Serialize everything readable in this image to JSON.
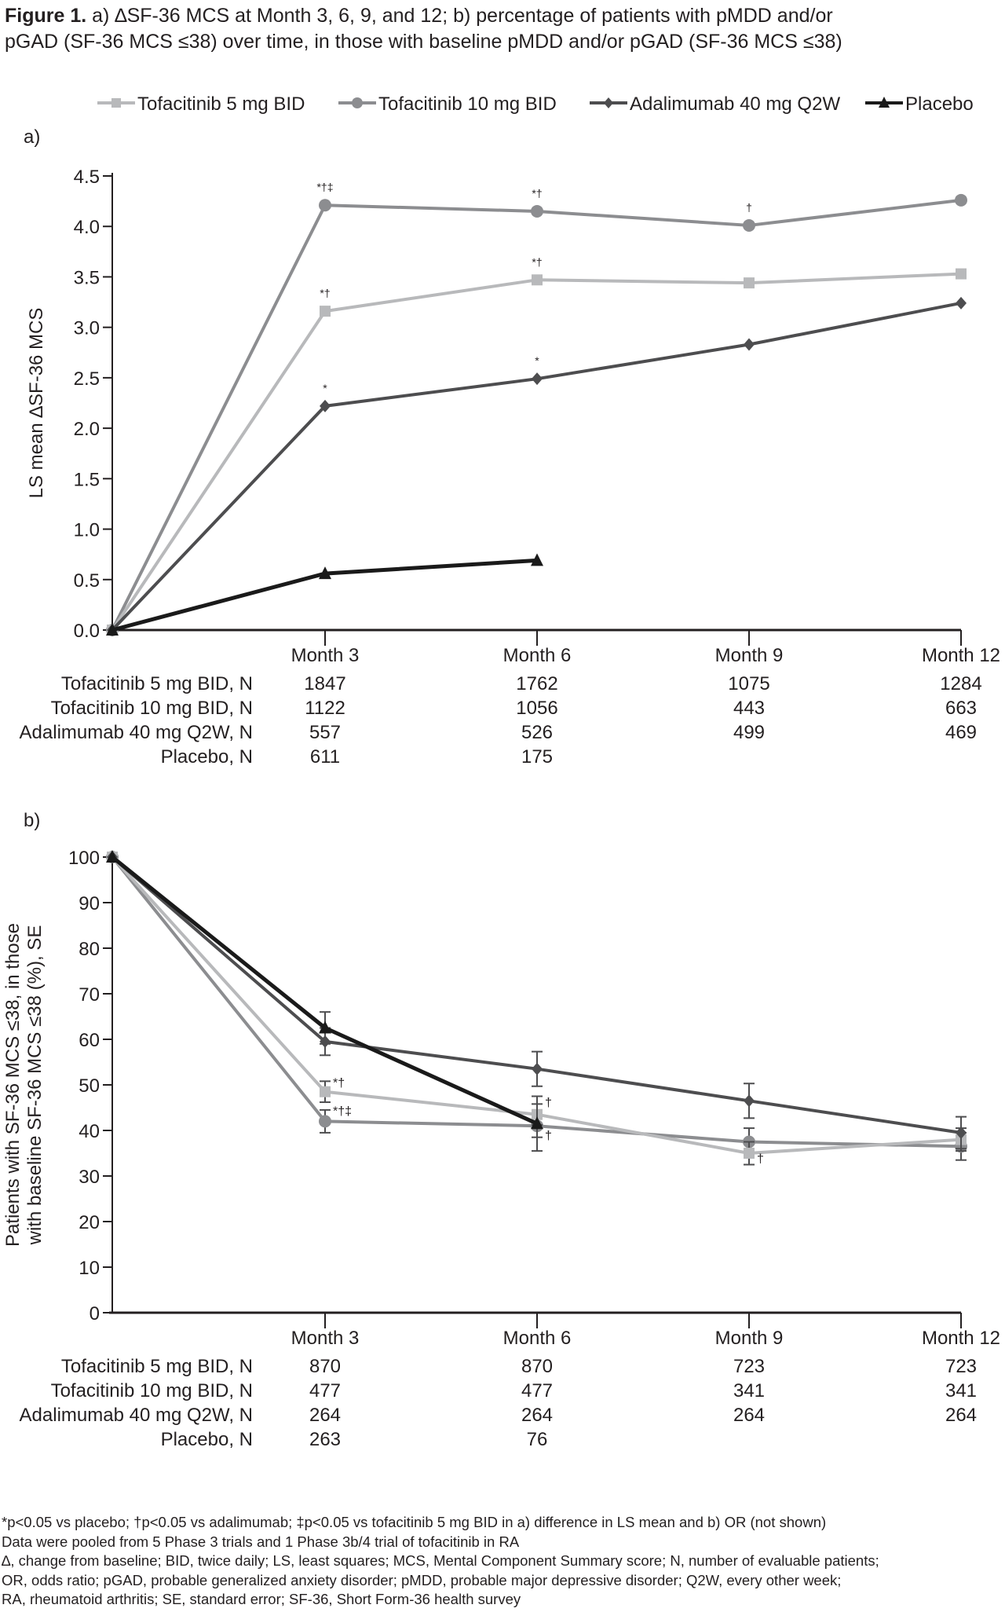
{
  "figure": {
    "title_bold": "Figure 1.",
    "title_rest_line1": " a) ∆SF-36 MCS at Month 3, 6, 9, and 12; b) percentage of patients with pMDD and/or",
    "title_line2": "pGAD (SF-36 MCS ≤38) over time, in those with baseline pMDD and/or pGAD (SF-36 MCS ≤38)"
  },
  "legend": [
    {
      "label": "Tofacitinib 5 mg BID",
      "color": "#b8b9bb",
      "marker": "square"
    },
    {
      "label": "Tofacitinib 10 mg BID",
      "color": "#8c8d90",
      "marker": "circle"
    },
    {
      "label": "Adalimumab 40 mg Q2W",
      "color": "#4d4d4f",
      "marker": "diamond"
    },
    {
      "label": "Placebo",
      "color": "#1a1a1a",
      "marker": "triangle"
    }
  ],
  "chart_data": [
    {
      "type": "line",
      "panel_label": "a)",
      "ylabel": "LS mean ∆SF-36 MCS",
      "xlabel": "",
      "x": [
        "Baseline",
        "Month 3",
        "Month 6",
        "Month 9",
        "Month 12"
      ],
      "x_tick_labels": [
        "",
        "Month 3",
        "Month 6",
        "Month 9",
        "Month 12"
      ],
      "ylim": [
        0,
        4.5
      ],
      "yticks": [
        "0.0",
        "0.5",
        "1.0",
        "1.5",
        "2.0",
        "2.5",
        "3.0",
        "3.5",
        "4.0",
        "4.5"
      ],
      "grid": false,
      "legend_position": "top",
      "series": [
        {
          "name": "Tofacitinib 5 mg BID",
          "values": [
            0,
            3.16,
            3.47,
            3.44,
            3.53
          ],
          "significance": [
            "",
            "*†",
            "*†",
            "",
            ""
          ]
        },
        {
          "name": "Tofacitinib 10 mg BID",
          "values": [
            0,
            4.21,
            4.15,
            4.01,
            4.26
          ],
          "significance": [
            "",
            "*†‡",
            "*†",
            "†",
            ""
          ]
        },
        {
          "name": "Adalimumab 40 mg Q2W",
          "values": [
            0,
            2.22,
            2.49,
            2.83,
            3.24
          ],
          "significance": [
            "",
            "*",
            "*",
            "",
            ""
          ]
        },
        {
          "name": "Placebo",
          "values": [
            0,
            0.56,
            0.69,
            null,
            null
          ],
          "significance": [
            "",
            "",
            "",
            "",
            ""
          ]
        }
      ],
      "n_table": {
        "rows": [
          {
            "label": "Tofacitinib 5 mg BID, N",
            "values": [
              "1847",
              "1762",
              "1075",
              "1284"
            ]
          },
          {
            "label": "Tofacitinib 10 mg BID, N",
            "values": [
              "1122",
              "1056",
              "443",
              "663"
            ]
          },
          {
            "label": "Adalimumab 40 mg Q2W, N",
            "values": [
              "557",
              "526",
              "499",
              "469"
            ]
          },
          {
            "label": "Placebo, N",
            "values": [
              "611",
              "175",
              "",
              ""
            ]
          }
        ]
      }
    },
    {
      "type": "line",
      "panel_label": "b)",
      "ylabel_line1": "Patients with SF-36 MCS ≤38, in those",
      "ylabel_line2": "with baseline SF-36 MCS ≤38 (%), SE",
      "xlabel": "",
      "x": [
        "Baseline",
        "Month 3",
        "Month 6",
        "Month 9",
        "Month 12"
      ],
      "x_tick_labels": [
        "",
        "Month 3",
        "Month 6",
        "Month 9",
        "Month 12"
      ],
      "ylim": [
        0,
        100
      ],
      "yticks": [
        "0",
        "10",
        "20",
        "30",
        "40",
        "50",
        "60",
        "70",
        "80",
        "90",
        "100"
      ],
      "grid": false,
      "series": [
        {
          "name": "Tofacitinib 5 mg BID",
          "values": [
            100,
            48.5,
            43.5,
            35,
            38
          ],
          "se": [
            0,
            2.3,
            2.3,
            2.5,
            2.5
          ],
          "significance": [
            "",
            "*†",
            "†",
            "†",
            ""
          ]
        },
        {
          "name": "Tofacitinib 10 mg BID",
          "values": [
            100,
            42,
            41,
            37.5,
            36.5
          ],
          "se": [
            0,
            2.5,
            2.5,
            3,
            3
          ],
          "significance": [
            "",
            "*†‡",
            "",
            "",
            ""
          ]
        },
        {
          "name": "Adalimumab 40 mg Q2W",
          "values": [
            100,
            59.5,
            53.5,
            46.5,
            39.5
          ],
          "se": [
            0,
            3,
            3.8,
            3.8,
            3.5
          ],
          "significance": [
            "",
            "",
            "",
            "",
            ""
          ]
        },
        {
          "name": "Placebo",
          "values": [
            100,
            62.5,
            41.5,
            null,
            null
          ],
          "se": [
            0,
            3.5,
            6,
            null,
            null
          ],
          "significance": [
            "",
            "",
            "†",
            "",
            ""
          ]
        }
      ],
      "n_table": {
        "rows": [
          {
            "label": "Tofacitinib 5 mg BID, N",
            "values": [
              "870",
              "870",
              "723",
              "723"
            ]
          },
          {
            "label": "Tofacitinib 10 mg BID, N",
            "values": [
              "477",
              "477",
              "341",
              "341"
            ]
          },
          {
            "label": "Adalimumab 40 mg Q2W, N",
            "values": [
              "264",
              "264",
              "264",
              "264"
            ]
          },
          {
            "label": "Placebo, N",
            "values": [
              "263",
              "76",
              "",
              ""
            ]
          }
        ]
      }
    }
  ],
  "footnotes": [
    "*p<0.05 vs placebo; †p<0.05 vs adalimumab; ‡p<0.05 vs tofacitinib 5 mg BID in a) difference in LS mean and b) OR (not shown)",
    "Data were pooled from 5 Phase 3 trials and 1 Phase 3b/4 trial of tofacitinib in RA",
    "∆, change from baseline; BID, twice daily; LS, least squares; MCS, Mental Component Summary score; N, number of evaluable patients;",
    "OR, odds ratio; pGAD, probable generalized anxiety disorder; pMDD, probable major depressive disorder; Q2W, every other week;",
    "RA, rheumatoid arthritis; SE, standard error; SF-36, Short Form-36 health survey"
  ]
}
